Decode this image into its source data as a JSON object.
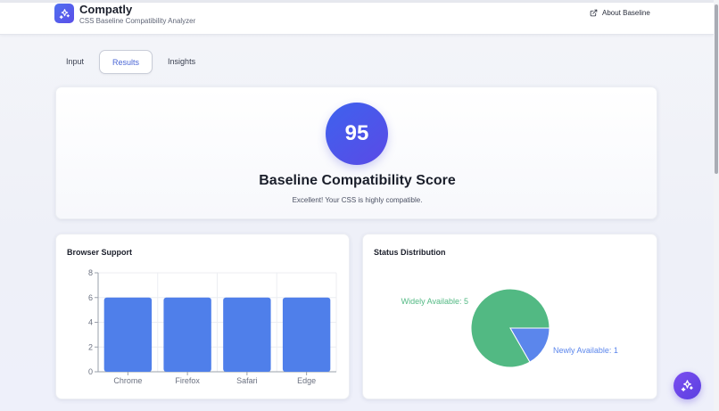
{
  "header": {
    "app_title": "Compatly",
    "app_subtitle": "CSS Baseline Compatibility Analyzer",
    "about_link": "About Baseline",
    "logo_icon": "sparkles-icon",
    "about_icon": "external-link-icon"
  },
  "tabs": [
    {
      "label": "Input",
      "active": false
    },
    {
      "label": "Results",
      "active": true
    },
    {
      "label": "Insights",
      "active": false
    }
  ],
  "score": {
    "value": "95",
    "title": "Baseline Compatibility Score",
    "message": "Excellent! Your CSS is highly compatible."
  },
  "browser_support": {
    "title": "Browser Support"
  },
  "status_distribution": {
    "title": "Status Distribution"
  },
  "chart_data": [
    {
      "type": "bar",
      "title": "Browser Support",
      "categories": [
        "Chrome",
        "Firefox",
        "Safari",
        "Edge"
      ],
      "values": [
        6,
        6,
        6,
        6
      ],
      "ylim": [
        0,
        8
      ],
      "yticks": [
        "0",
        "2",
        "4",
        "6",
        "8"
      ],
      "grid": true,
      "color": "#4f7fea"
    },
    {
      "type": "pie",
      "title": "Status Distribution",
      "slices": [
        {
          "label": "Widely Available: 5",
          "value": 5,
          "color": "#52b983"
        },
        {
          "label": "Newly Available: 1",
          "value": 1,
          "color": "#5b86ec"
        }
      ]
    }
  ],
  "colors": {
    "accent": "#4a66d6",
    "score_gradient_start": "#3e62ee",
    "score_gradient_end": "#5a4ae6",
    "bar": "#4f7fea",
    "widely": "#52b983",
    "newly": "#5b86ec",
    "fab": "#6a46ea"
  },
  "fab": {
    "icon": "sparkles-icon"
  }
}
